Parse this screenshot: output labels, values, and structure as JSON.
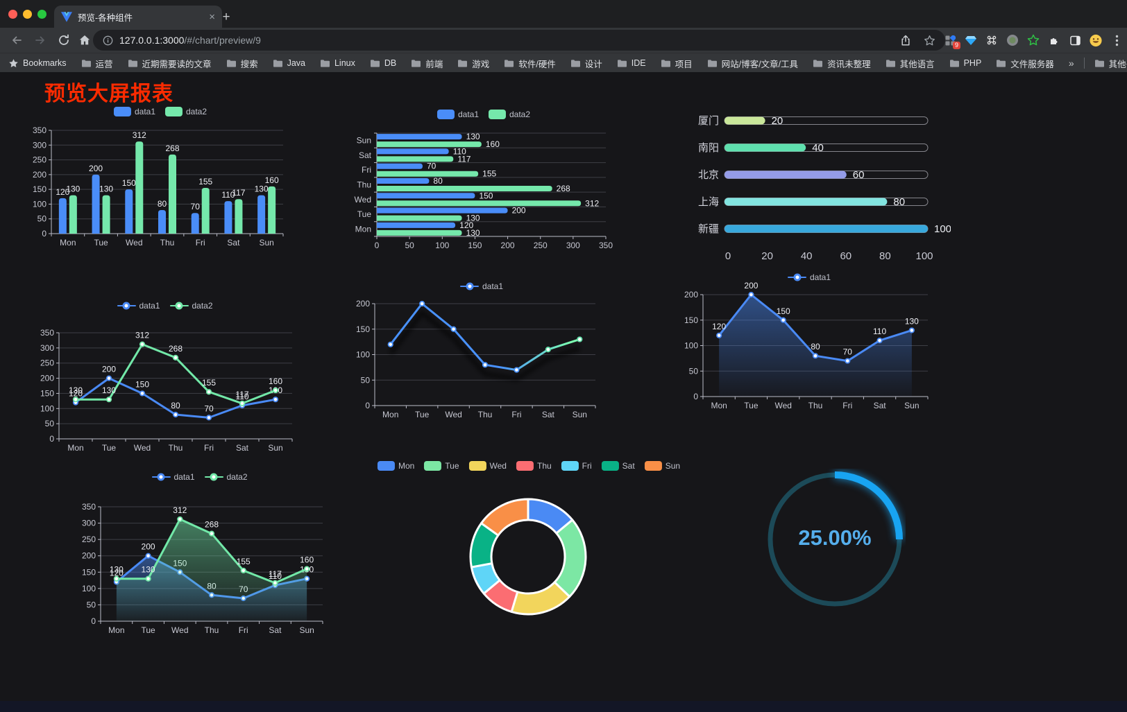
{
  "browser": {
    "tab_title": "预览-各种组件",
    "new_tab_glyph": "+",
    "close_tab_glyph": "×",
    "url_host": "127.0.0.1:3000",
    "url_path": "/#/chart/preview/9",
    "bookmarks_label": "Bookmarks",
    "bookmarks": [
      "运营",
      "近期需要读的文章",
      "搜索",
      "Java",
      "Linux",
      "DB",
      "前端",
      "游戏",
      "软件/硬件",
      "设计",
      "IDE",
      "项目",
      "网站/博客/文章/工具",
      "资讯未整理",
      "其他语言",
      "PHP",
      "文件服务器"
    ],
    "overflow_glyph": "»",
    "other_bookmarks": "其他书签",
    "extension_badge": "9"
  },
  "page": {
    "title": "预览大屏报表",
    "title_color": "#fb2b01",
    "background": "#161619"
  },
  "chart_data": [
    {
      "id": "bar-vertical",
      "type": "bar",
      "categories": [
        "Mon",
        "Tue",
        "Wed",
        "Thu",
        "Fri",
        "Sat",
        "Sun"
      ],
      "series": [
        {
          "name": "data1",
          "color": "#4a8df8",
          "values": [
            120,
            200,
            150,
            80,
            70,
            110,
            130
          ]
        },
        {
          "name": "data2",
          "color": "#75e8ab",
          "values": [
            130,
            130,
            312,
            268,
            155,
            117,
            160
          ]
        }
      ],
      "ylim": [
        0,
        350
      ],
      "yticks": [
        0,
        50,
        100,
        150,
        200,
        250,
        300,
        350
      ],
      "grid": true,
      "labels": true,
      "legend_position": "top"
    },
    {
      "id": "bar-horizontal",
      "type": "bar",
      "orientation": "horizontal",
      "category_top": "Sun",
      "categories": [
        "Mon",
        "Tue",
        "Wed",
        "Thu",
        "Fri",
        "Sat",
        "Sun"
      ],
      "series": [
        {
          "name": "data1",
          "color": "#4a8df8",
          "values": [
            120,
            200,
            150,
            80,
            70,
            110,
            130
          ]
        },
        {
          "name": "data2",
          "color": "#75e8ab",
          "values": [
            130,
            130,
            312,
            268,
            155,
            117,
            160
          ]
        }
      ],
      "xlim": [
        0,
        350
      ],
      "xticks": [
        0,
        50,
        100,
        150,
        200,
        250,
        300,
        350
      ],
      "grid": true,
      "labels": true,
      "legend_position": "top"
    },
    {
      "id": "progress",
      "type": "bar",
      "subtype": "progress-list",
      "items": [
        {
          "label": "厦门",
          "value": 20,
          "color": "#c9e79a"
        },
        {
          "label": "南阳",
          "value": 40,
          "color": "#5fe0ae"
        },
        {
          "label": "北京",
          "value": 60,
          "color": "#949ce8"
        },
        {
          "label": "上海",
          "value": 80,
          "color": "#82e4e0"
        },
        {
          "label": "新疆",
          "value": 100,
          "color": "#38a8dc"
        }
      ],
      "xlim": [
        0,
        100
      ],
      "xticks": [
        0,
        20,
        40,
        60,
        80,
        100
      ]
    },
    {
      "id": "line-dual",
      "type": "line",
      "categories": [
        "Mon",
        "Tue",
        "Wed",
        "Thu",
        "Fri",
        "Sat",
        "Sun"
      ],
      "series": [
        {
          "name": "data1",
          "color": "#4a8af5",
          "values": [
            120,
            200,
            150,
            80,
            70,
            110,
            130
          ]
        },
        {
          "name": "data2",
          "color": "#72e8a8",
          "values": [
            130,
            130,
            312,
            268,
            155,
            117,
            160
          ]
        }
      ],
      "ylim": [
        0,
        350
      ],
      "yticks": [
        0,
        50,
        100,
        150,
        200,
        250,
        300,
        350
      ],
      "grid": true,
      "labels": true,
      "legend_position": "top"
    },
    {
      "id": "line-gradient",
      "type": "line",
      "categories": [
        "Mon",
        "Tue",
        "Wed",
        "Thu",
        "Fri",
        "Sat",
        "Sun"
      ],
      "series": [
        {
          "name": "data1",
          "color": "#4a8af5",
          "gradient": [
            "#4992ff",
            "#7cffb2"
          ],
          "values": [
            120,
            200,
            150,
            80,
            70,
            110,
            130
          ]
        }
      ],
      "ylim": [
        0,
        200
      ],
      "yticks": [
        0,
        50,
        100,
        150,
        200
      ],
      "grid": true,
      "labels": false,
      "legend_position": "top",
      "shadow": true
    },
    {
      "id": "line-area",
      "type": "line",
      "categories": [
        "Mon",
        "Tue",
        "Wed",
        "Thu",
        "Fri",
        "Sat",
        "Sun"
      ],
      "series": [
        {
          "name": "data1",
          "color": "#4a8af5",
          "area": true,
          "values": [
            120,
            200,
            150,
            80,
            70,
            110,
            130
          ]
        }
      ],
      "ylim": [
        0,
        200
      ],
      "yticks": [
        0,
        50,
        100,
        150,
        200
      ],
      "grid": true,
      "labels": true,
      "legend_position": "top"
    },
    {
      "id": "line-dual-area",
      "type": "line",
      "categories": [
        "Mon",
        "Tue",
        "Wed",
        "Thu",
        "Fri",
        "Sat",
        "Sun"
      ],
      "series": [
        {
          "name": "data1",
          "color": "#4a8af5",
          "area": true,
          "values": [
            120,
            200,
            150,
            80,
            70,
            110,
            130
          ]
        },
        {
          "name": "data2",
          "color": "#72e8a8",
          "area": true,
          "values": [
            130,
            130,
            312,
            268,
            155,
            117,
            160
          ]
        }
      ],
      "ylim": [
        0,
        350
      ],
      "yticks": [
        0,
        50,
        100,
        150,
        200,
        250,
        300,
        350
      ],
      "grid": true,
      "labels": true,
      "legend_position": "top"
    },
    {
      "id": "pie-donut",
      "type": "pie",
      "donut": true,
      "categories": [
        "Mon",
        "Tue",
        "Wed",
        "Thu",
        "Fri",
        "Sat",
        "Sun"
      ],
      "values": [
        120,
        200,
        150,
        80,
        70,
        110,
        130
      ],
      "colors": [
        "#4a8af4",
        "#7ce7a4",
        "#f2d55c",
        "#fb6d72",
        "#5fd5f7",
        "#09b286",
        "#f98f47"
      ],
      "legend_position": "top"
    },
    {
      "id": "gauge",
      "type": "gauge",
      "percent": 25,
      "label": "25.00%",
      "color": "#18a4f2",
      "track_color": "#1c4a58",
      "text_color": "#55aeec"
    }
  ]
}
